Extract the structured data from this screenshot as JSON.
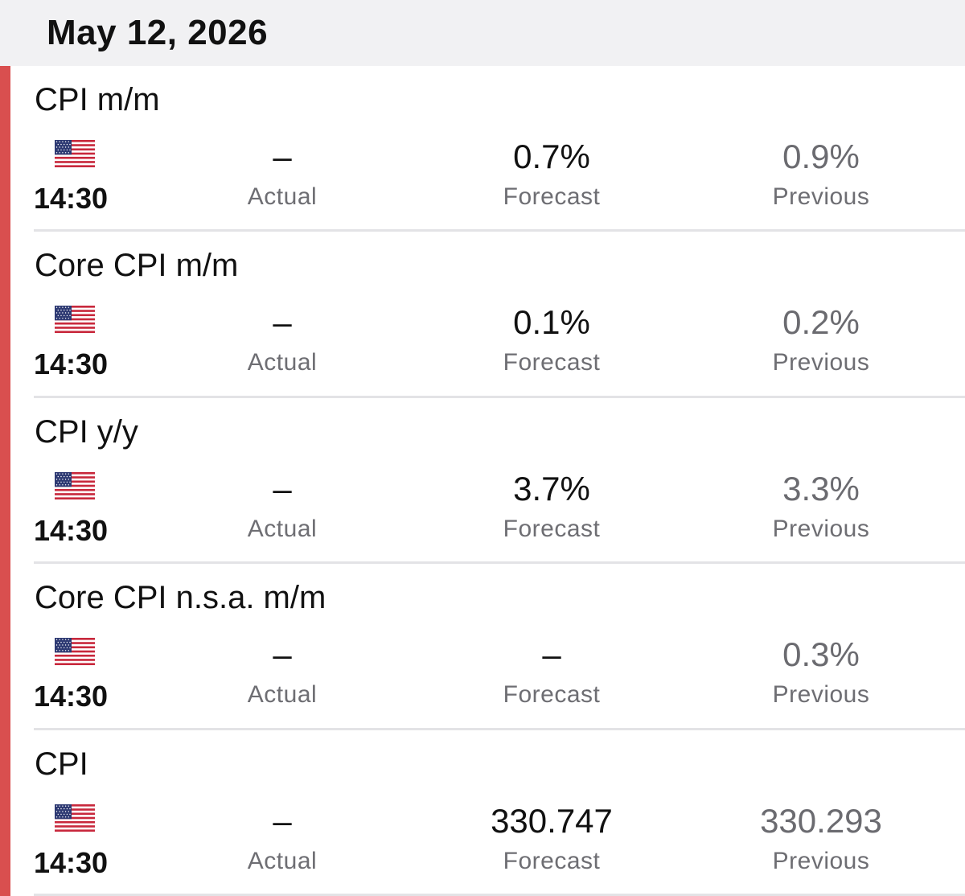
{
  "header": {
    "date": "May 12, 2026"
  },
  "colors": {
    "impact_high": "#d94f4f",
    "header_bg": "#f1f1f3",
    "label_grey": "#6e6e73"
  },
  "labels": {
    "actual": "Actual",
    "forecast": "Forecast",
    "previous": "Previous"
  },
  "events": [
    {
      "name": "CPI m/m",
      "country_icon": "us-flag-icon",
      "time": "14:30",
      "actual": "–",
      "forecast": "0.7%",
      "previous": "0.9%"
    },
    {
      "name": "Core CPI m/m",
      "country_icon": "us-flag-icon",
      "time": "14:30",
      "actual": "–",
      "forecast": "0.1%",
      "previous": "0.2%"
    },
    {
      "name": "CPI y/y",
      "country_icon": "us-flag-icon",
      "time": "14:30",
      "actual": "–",
      "forecast": "3.7%",
      "previous": "3.3%"
    },
    {
      "name": "Core CPI n.s.a. m/m",
      "country_icon": "us-flag-icon",
      "time": "14:30",
      "actual": "–",
      "forecast": "–",
      "previous": "0.3%"
    },
    {
      "name": "CPI",
      "country_icon": "us-flag-icon",
      "time": "14:30",
      "actual": "–",
      "forecast": "330.747",
      "previous": "330.293"
    }
  ]
}
